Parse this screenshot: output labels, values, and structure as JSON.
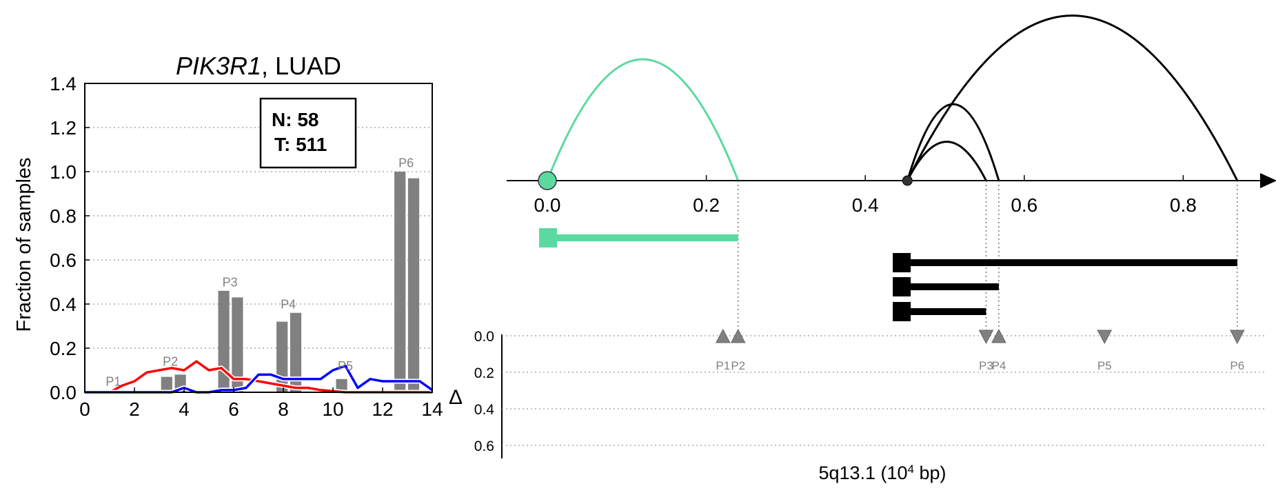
{
  "chart_data": [
    {
      "type": "bar",
      "title": "PIK3R1, LUAD",
      "title_italic_part": "PIK3R1",
      "title_rest": ", LUAD",
      "ylabel": "Fraction of samples",
      "xlabel": "",
      "xlim": [
        0,
        14
      ],
      "ylim": [
        0,
        1.4
      ],
      "xticks": [
        0,
        2,
        4,
        6,
        8,
        10,
        12,
        14
      ],
      "yticks": [
        0.0,
        0.2,
        0.4,
        0.6,
        0.8,
        1.0,
        1.2,
        1.4
      ],
      "ytick_labels": [
        "0.0",
        "0.2",
        "0.4",
        "0.6",
        "0.8",
        "1.0",
        "1.2",
        "1.4"
      ],
      "xtick_labels": [
        "0",
        "2",
        "4",
        "6",
        "8",
        "10",
        "12",
        "14"
      ],
      "grid": "horizontal dotted",
      "info_box": {
        "n_label": "N: 58",
        "t_label": "T: 511"
      },
      "bars": [
        {
          "x": 1.3,
          "value": 0.0
        },
        {
          "x": 3.3,
          "value": 0.07
        },
        {
          "x": 3.85,
          "value": 0.08
        },
        {
          "x": 5.6,
          "value": 0.46
        },
        {
          "x": 6.15,
          "value": 0.43
        },
        {
          "x": 7.95,
          "value": 0.32
        },
        {
          "x": 8.5,
          "value": 0.36
        },
        {
          "x": 10.35,
          "value": 0.06
        },
        {
          "x": 12.7,
          "value": 1.0
        },
        {
          "x": 13.25,
          "value": 0.97
        }
      ],
      "bar_width": 0.45,
      "bar_color": "#808080",
      "bar_labels": [
        {
          "text": "P1",
          "x": 1.15,
          "y": 0.03
        },
        {
          "text": "P2",
          "x": 3.45,
          "y": 0.12
        },
        {
          "text": "P3",
          "x": 5.85,
          "y": 0.48
        },
        {
          "text": "P4",
          "x": 8.2,
          "y": 0.38
        },
        {
          "text": "P5",
          "x": 10.5,
          "y": 0.1
        },
        {
          "text": "P6",
          "x": 12.95,
          "y": 1.02
        }
      ],
      "series": [
        {
          "color": "#ff0000",
          "x": [
            0,
            0.5,
            1.0,
            1.5,
            2.0,
            2.5,
            3.0,
            3.5,
            4.0,
            4.5,
            5.0,
            5.5,
            6.0,
            6.5,
            7.0,
            7.5,
            8.0,
            8.5,
            9.0,
            9.5,
            10.0,
            10.5,
            11.0,
            11.5,
            12.0,
            12.5,
            13.0,
            13.5,
            14.0
          ],
          "values": [
            0.0,
            0.0,
            0.0,
            0.03,
            0.05,
            0.09,
            0.1,
            0.11,
            0.1,
            0.14,
            0.1,
            0.11,
            0.06,
            0.06,
            0.05,
            0.04,
            0.03,
            0.02,
            0.02,
            0.01,
            0.005,
            0.0,
            0.0,
            0.0,
            0.0,
            0.0,
            0.0,
            0.0,
            0.0
          ]
        },
        {
          "color": "#0000ff",
          "x": [
            0,
            0.5,
            1.0,
            1.5,
            2.0,
            2.5,
            3.0,
            3.5,
            4.0,
            4.5,
            5.0,
            5.5,
            6.0,
            6.5,
            7.0,
            7.5,
            8.0,
            8.5,
            9.0,
            9.5,
            10.0,
            10.5,
            11.0,
            11.5,
            12.0,
            12.5,
            13.0,
            13.5,
            14.0
          ],
          "values": [
            0.0,
            0.0,
            0.0,
            0.0,
            0.0,
            0.0,
            0.0,
            0.0,
            0.02,
            0.0,
            0.0,
            0.01,
            0.01,
            0.02,
            0.08,
            0.08,
            0.06,
            0.06,
            0.06,
            0.06,
            0.1,
            0.12,
            0.02,
            0.06,
            0.05,
            0.05,
            0.05,
            0.05,
            0.01
          ]
        }
      ]
    },
    {
      "type": "arc-diagram",
      "xlabel_prefix": "5q13.1 (10",
      "xlabel_sup": "4",
      "xlabel_suffix": " bp)",
      "xlim": [
        -0.05,
        0.92
      ],
      "xticks": [
        0.0,
        0.2,
        0.4,
        0.6,
        0.8
      ],
      "xtick_labels": [
        "0.0",
        "0.2",
        "0.4",
        "0.6",
        "0.8"
      ],
      "colors": {
        "green": "#5bd9a0",
        "black": "#000000",
        "triangle": "#808080",
        "axis": "#000000"
      },
      "green_start": 0.0,
      "black_start": 0.453,
      "arcs": [
        {
          "start": 0.0,
          "end": 0.24,
          "color": "green",
          "height": 1.0
        },
        {
          "start": 0.453,
          "end": 0.552,
          "color": "black",
          "height": 0.32
        },
        {
          "start": 0.453,
          "end": 0.568,
          "color": "black",
          "height": 0.63
        },
        {
          "start": 0.453,
          "end": 0.868,
          "color": "black",
          "height": 1.36
        }
      ],
      "transcripts": [
        {
          "start": 0.0,
          "end": 0.24,
          "color": "green",
          "row": 0
        },
        {
          "start": 0.445,
          "end": 0.868,
          "color": "black",
          "row": 1
        },
        {
          "start": 0.445,
          "end": 0.568,
          "color": "black",
          "row": 2
        },
        {
          "start": 0.445,
          "end": 0.552,
          "color": "black",
          "row": 3
        }
      ],
      "vertical_guides": [
        0.24,
        0.552,
        0.568,
        0.868
      ],
      "delta_panel": {
        "ylabel": "Δ",
        "yticks": [
          0.0,
          0.2,
          0.4,
          0.6
        ],
        "ytick_labels": [
          "0.0",
          "0.2",
          "0.4",
          "0.6"
        ],
        "triangles": [
          {
            "label": "P1",
            "x": 0.221,
            "dir": "up"
          },
          {
            "label": "P2",
            "x": 0.24,
            "dir": "up"
          },
          {
            "label": "P3",
            "x": 0.552,
            "dir": "down"
          },
          {
            "label": "P4",
            "x": 0.568,
            "dir": "up"
          },
          {
            "label": "P5",
            "x": 0.701,
            "dir": "down"
          },
          {
            "label": "P6",
            "x": 0.868,
            "dir": "down"
          }
        ]
      }
    }
  ]
}
